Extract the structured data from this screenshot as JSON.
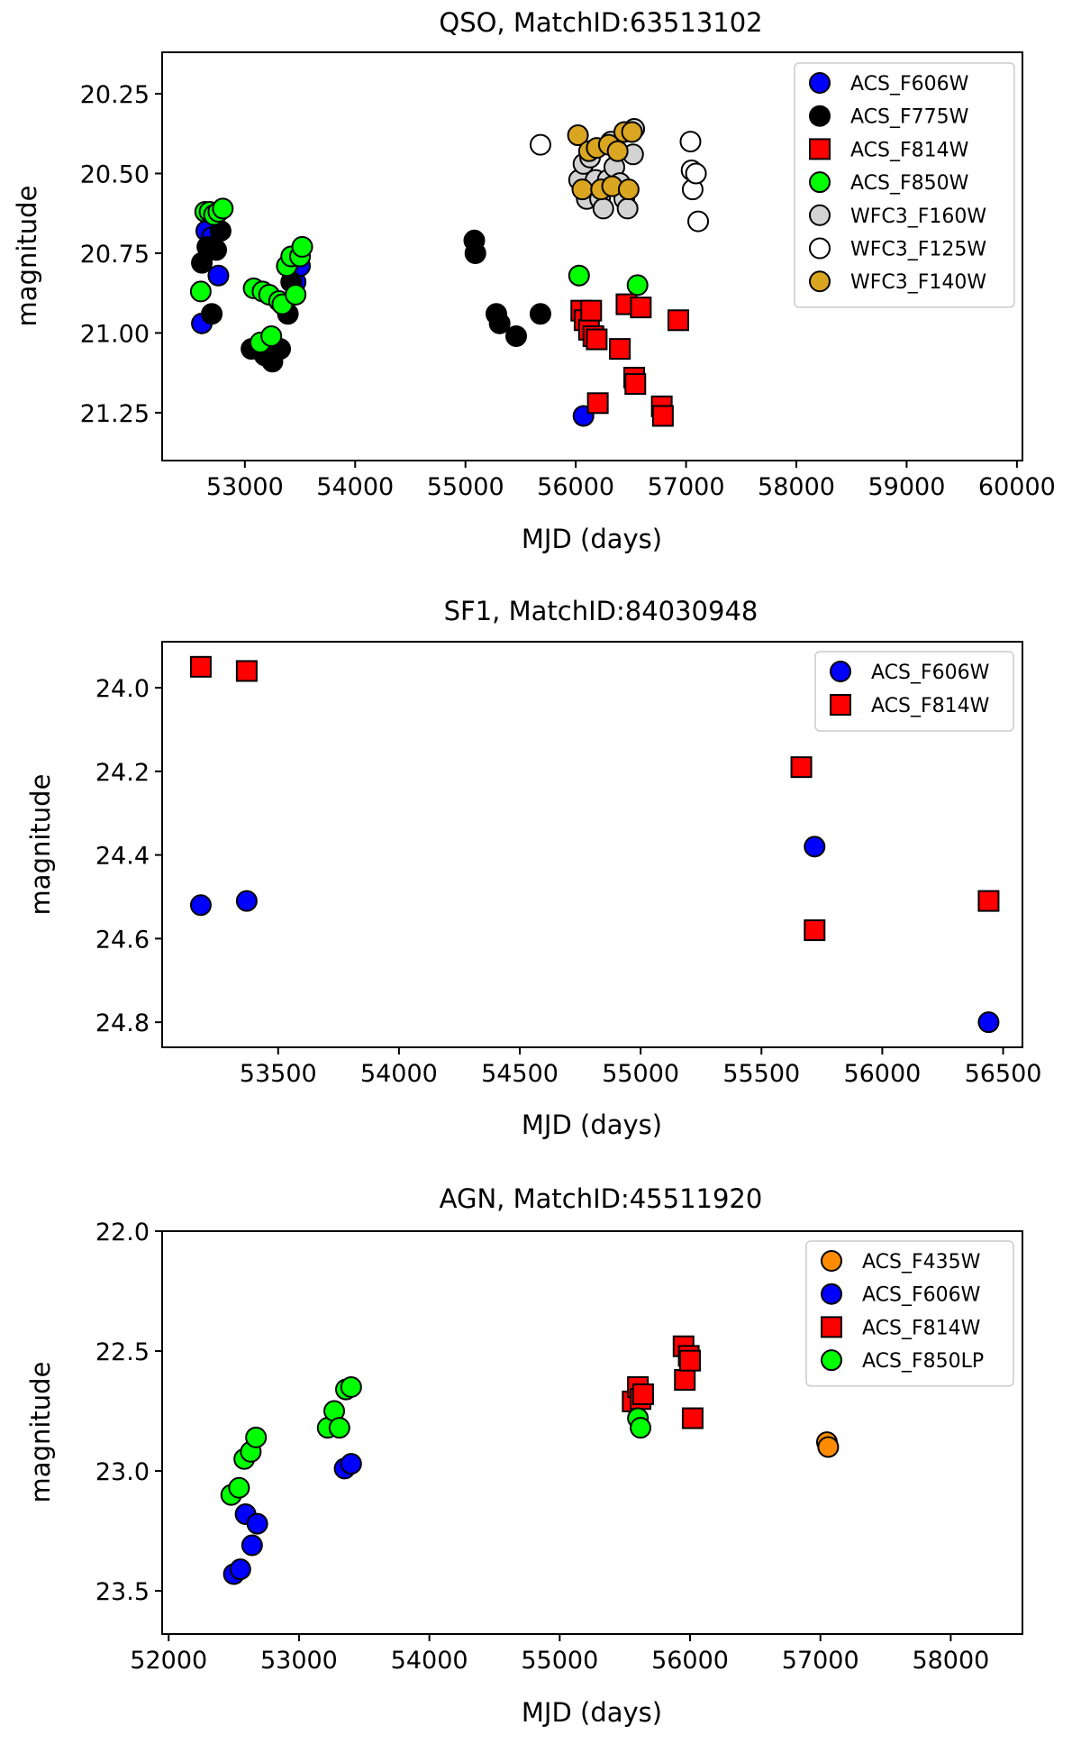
{
  "colors": {
    "ACS_F606W": "#0000ff",
    "ACS_F775W": "#000000",
    "ACS_F814W": "#ff0000",
    "ACS_F850W": "#00ff00",
    "ACS_F850LP": "#00ff00",
    "WFC3_F160W": "#d3d3d3",
    "WFC3_F125W": "#ffffff",
    "WFC3_F140W": "#daa520",
    "ACS_F435W": "#ff8c00"
  },
  "chart_data": [
    {
      "type": "scatter",
      "title": "QSO, MatchID:63513102",
      "xlabel": "MJD (days)",
      "ylabel": "magnitude",
      "xlim": [
        52250,
        60050
      ],
      "ylim": [
        21.4,
        20.12
      ],
      "y_inverted": true,
      "xticks": [
        53000,
        54000,
        55000,
        56000,
        57000,
        58000,
        59000,
        60000
      ],
      "xtick_labels": [
        "53000",
        "54000",
        "55000",
        "56000",
        "57000",
        "58000",
        "59000",
        "60000"
      ],
      "yticks": [
        20.25,
        20.5,
        20.75,
        21.0,
        21.25
      ],
      "ytick_labels": [
        "20.25",
        "20.50",
        "20.75",
        "21.00",
        "21.25"
      ],
      "legend_position": "upper right",
      "series": [
        {
          "name": "ACS_F606W",
          "marker": "circle",
          "points": [
            [
              52610,
              20.97
            ],
            [
              52650,
              20.68
            ],
            [
              52700,
              20.7
            ],
            [
              52760,
              20.82
            ],
            [
              53460,
              20.84
            ],
            [
              53500,
              20.79
            ],
            [
              56070,
              21.26
            ]
          ]
        },
        {
          "name": "ACS_F775W",
          "marker": "circle",
          "points": [
            [
              52610,
              20.78
            ],
            [
              52660,
              20.73
            ],
            [
              52700,
              20.94
            ],
            [
              52740,
              20.74
            ],
            [
              52780,
              20.68
            ],
            [
              53060,
              21.05
            ],
            [
              53120,
              21.04
            ],
            [
              53180,
              21.07
            ],
            [
              53250,
              21.09
            ],
            [
              53320,
              21.05
            ],
            [
              53390,
              20.94
            ],
            [
              53420,
              20.84
            ],
            [
              55080,
              20.71
            ],
            [
              55090,
              20.75
            ],
            [
              55280,
              20.94
            ],
            [
              55310,
              20.97
            ],
            [
              55460,
              21.01
            ],
            [
              55680,
              20.94
            ]
          ]
        },
        {
          "name": "ACS_F814W",
          "marker": "square",
          "points": [
            [
              56050,
              20.93
            ],
            [
              56080,
              20.96
            ],
            [
              56120,
              20.99
            ],
            [
              56140,
              20.93
            ],
            [
              56160,
              21.01
            ],
            [
              56190,
              21.02
            ],
            [
              56200,
              21.22
            ],
            [
              56400,
              21.05
            ],
            [
              56460,
              20.91
            ],
            [
              56530,
              21.14
            ],
            [
              56540,
              21.16
            ],
            [
              56590,
              20.92
            ],
            [
              56780,
              21.23
            ],
            [
              56790,
              21.26
            ],
            [
              56930,
              20.96
            ]
          ]
        },
        {
          "name": "ACS_F850W",
          "marker": "circle",
          "points": [
            [
              52600,
              20.87
            ],
            [
              52640,
              20.62
            ],
            [
              52680,
              20.62
            ],
            [
              52720,
              20.63
            ],
            [
              52760,
              20.62
            ],
            [
              52800,
              20.61
            ],
            [
              53080,
              20.86
            ],
            [
              53140,
              21.03
            ],
            [
              53160,
              20.87
            ],
            [
              53220,
              20.88
            ],
            [
              53240,
              21.01
            ],
            [
              53310,
              20.9
            ],
            [
              53340,
              20.91
            ],
            [
              53380,
              20.79
            ],
            [
              53420,
              20.76
            ],
            [
              53460,
              20.88
            ],
            [
              53500,
              20.76
            ],
            [
              53520,
              20.73
            ],
            [
              56030,
              20.82
            ],
            [
              56560,
              20.85
            ]
          ]
        },
        {
          "name": "WFC3_F160W",
          "marker": "circle",
          "points": [
            [
              56030,
              20.52
            ],
            [
              56070,
              20.47
            ],
            [
              56100,
              20.58
            ],
            [
              56130,
              20.45
            ],
            [
              56180,
              20.52
            ],
            [
              56220,
              20.58
            ],
            [
              56250,
              20.61
            ],
            [
              56290,
              20.52
            ],
            [
              56320,
              20.4
            ],
            [
              56350,
              20.48
            ],
            [
              56400,
              20.53
            ],
            [
              56440,
              20.58
            ],
            [
              56470,
              20.61
            ],
            [
              56520,
              20.44
            ],
            [
              56530,
              20.36
            ]
          ]
        },
        {
          "name": "WFC3_F125W",
          "marker": "circle",
          "points": [
            [
              55680,
              20.41
            ],
            [
              57040,
              20.4
            ],
            [
              57050,
              20.49
            ],
            [
              57060,
              20.55
            ],
            [
              57090,
              20.5
            ],
            [
              57110,
              20.65
            ]
          ]
        },
        {
          "name": "WFC3_F140W",
          "marker": "circle",
          "points": [
            [
              56020,
              20.38
            ],
            [
              56060,
              20.55
            ],
            [
              56120,
              20.43
            ],
            [
              56190,
              20.42
            ],
            [
              56230,
              20.55
            ],
            [
              56300,
              20.41
            ],
            [
              56330,
              20.54
            ],
            [
              56380,
              20.43
            ],
            [
              56440,
              20.37
            ],
            [
              56480,
              20.55
            ],
            [
              56510,
              20.37
            ]
          ]
        }
      ]
    },
    {
      "type": "scatter",
      "title": "SF1, MatchID:84030948",
      "xlabel": "MJD (days)",
      "ylabel": "magnitude",
      "xlim": [
        53020,
        56580
      ],
      "ylim": [
        24.86,
        23.89
      ],
      "y_inverted": true,
      "xticks": [
        53500,
        54000,
        54500,
        55000,
        55500,
        56000,
        56500
      ],
      "xtick_labels": [
        "53500",
        "54000",
        "54500",
        "55000",
        "55500",
        "56000",
        "56500"
      ],
      "yticks": [
        24.0,
        24.2,
        24.4,
        24.6,
        24.8
      ],
      "ytick_labels": [
        "24.0",
        "24.2",
        "24.4",
        "24.6",
        "24.8"
      ],
      "legend_position": "upper right",
      "series": [
        {
          "name": "ACS_F606W",
          "marker": "circle",
          "points": [
            [
              53180,
              24.52
            ],
            [
              53370,
              24.51
            ],
            [
              55720,
              24.38
            ],
            [
              56440,
              24.8
            ]
          ]
        },
        {
          "name": "ACS_F814W",
          "marker": "square",
          "points": [
            [
              53180,
              23.95
            ],
            [
              53370,
              23.96
            ],
            [
              55665,
              24.19
            ],
            [
              55720,
              24.58
            ],
            [
              56440,
              24.51
            ]
          ]
        }
      ]
    },
    {
      "type": "scatter",
      "title": "AGN, MatchID:45511920",
      "xlabel": "MJD (days)",
      "ylabel": "magnitude",
      "xlim": [
        51950,
        58550
      ],
      "ylim": [
        23.68,
        22.0
      ],
      "y_inverted": true,
      "xticks": [
        52000,
        53000,
        54000,
        55000,
        56000,
        57000,
        58000
      ],
      "xtick_labels": [
        "52000",
        "53000",
        "54000",
        "55000",
        "56000",
        "57000",
        "58000"
      ],
      "yticks": [
        22.0,
        22.5,
        23.0,
        23.5
      ],
      "ytick_labels": [
        "22.0",
        "22.5",
        "23.0",
        "23.5"
      ],
      "legend_position": "upper right",
      "series": [
        {
          "name": "ACS_F435W",
          "marker": "circle",
          "points": [
            [
              57050,
              22.88
            ],
            [
              57060,
              22.9
            ]
          ]
        },
        {
          "name": "ACS_F606W",
          "marker": "circle",
          "points": [
            [
              52500,
              23.43
            ],
            [
              52550,
              23.41
            ],
            [
              52590,
              23.18
            ],
            [
              52640,
              23.31
            ],
            [
              52680,
              23.22
            ],
            [
              53350,
              22.99
            ],
            [
              53400,
              22.97
            ]
          ]
        },
        {
          "name": "ACS_F814W",
          "marker": "square",
          "points": [
            [
              55560,
              22.71
            ],
            [
              55600,
              22.65
            ],
            [
              55620,
              22.7
            ],
            [
              55640,
              22.68
            ],
            [
              55950,
              22.48
            ],
            [
              55960,
              22.62
            ],
            [
              55990,
              22.52
            ],
            [
              56000,
              22.54
            ],
            [
              56020,
              22.78
            ]
          ]
        },
        {
          "name": "ACS_F850LP",
          "marker": "circle",
          "points": [
            [
              52480,
              23.1
            ],
            [
              52540,
              23.07
            ],
            [
              52580,
              22.95
            ],
            [
              52630,
              22.92
            ],
            [
              52670,
              22.86
            ],
            [
              53220,
              22.82
            ],
            [
              53270,
              22.75
            ],
            [
              53310,
              22.82
            ],
            [
              53360,
              22.66
            ],
            [
              53400,
              22.65
            ],
            [
              55600,
              22.78
            ],
            [
              55620,
              22.82
            ]
          ]
        }
      ]
    }
  ]
}
